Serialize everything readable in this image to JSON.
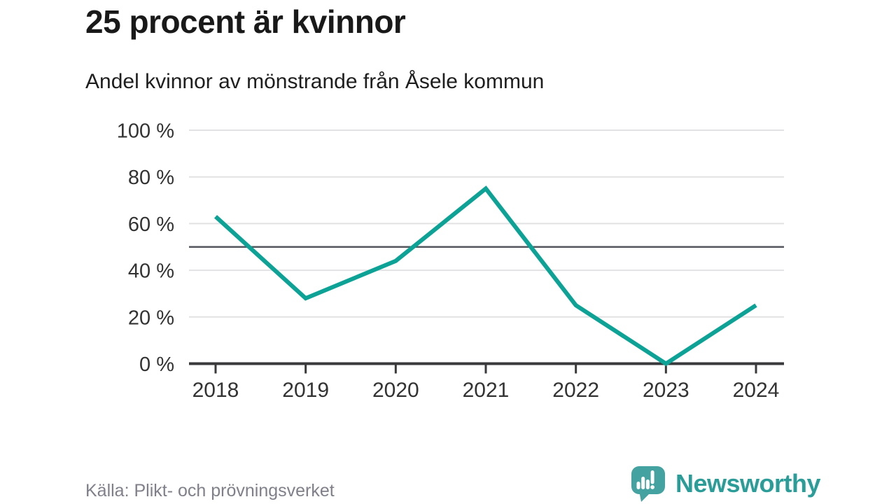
{
  "header": {
    "title": "25 procent är kvinnor",
    "subtitle": "Andel kvinnor av mönstrande från Åsele kommun"
  },
  "chart_data": {
    "type": "line",
    "title": "25 procent är kvinnor",
    "subtitle": "Andel kvinnor av mönstrande från Åsele kommun",
    "categories": [
      "2018",
      "2019",
      "2020",
      "2021",
      "2022",
      "2023",
      "2024"
    ],
    "series": [
      {
        "name": "Andel kvinnor av mönstrande",
        "values": [
          63,
          28,
          44,
          75,
          25,
          0,
          25
        ]
      }
    ],
    "xlabel": "",
    "ylabel": "",
    "ylim": [
      0,
      100
    ],
    "yticks": [
      0,
      20,
      40,
      60,
      80,
      100
    ],
    "ytick_format": "{v} %",
    "reference_line_y": 50,
    "grid": "horizontal",
    "legend": "none",
    "colors": {
      "line": "#0ca295",
      "grid": "#e2e2e4",
      "axis": "#3a3a3c",
      "reference_line": "#54575e",
      "tick_label": "#333333"
    }
  },
  "footer": {
    "source": "Källa: Plikt- och prövningsverket",
    "brand": "Newsworthy",
    "brand_color": "#2b9d98",
    "brand_bubble_color": "#44a3a0"
  }
}
